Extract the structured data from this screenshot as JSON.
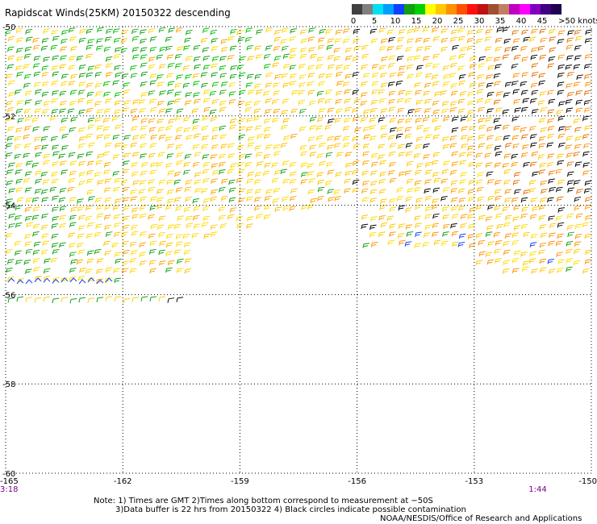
{
  "title": "Rapidscat Winds(25KM) 20150322 descending",
  "legend": {
    "labels": [
      "0",
      "5",
      "10",
      "15",
      "20",
      "25",
      "30",
      "35",
      "40",
      "45",
      ">50 knots"
    ],
    "colors": [
      "#404040",
      "#808080",
      "#00e0f0",
      "#00a0ff",
      "#1040ff",
      "#10a010",
      "#00d000",
      "#ffff00",
      "#ffc800",
      "#ff9000",
      "#ff5000",
      "#ff1010",
      "#c01010",
      "#a05030",
      "#c08060",
      "#c000c0",
      "#ff00ff",
      "#8000c0",
      "#400080",
      "#200050"
    ]
  },
  "map": {
    "lon_min": -165,
    "lon_max": -150,
    "lat_min": -60,
    "lat_max": -50,
    "lon_ticks": [
      "-165",
      "-162",
      "-159",
      "-156",
      "-153",
      "-150"
    ],
    "lat_ticks": [
      "-50",
      "-52",
      "-54",
      "-56",
      "-58",
      "-60"
    ],
    "lon_values": [
      -165,
      -162,
      -159,
      -156,
      -153,
      -150
    ],
    "lat_values": [
      -50,
      -52,
      -54,
      -56,
      -58,
      -60
    ],
    "grid_lon": [
      -162,
      -159,
      -156,
      -153
    ],
    "grid_lat": [
      -52,
      -54,
      -56,
      -58
    ],
    "times": [
      {
        "label": "3:18",
        "lon": -165
      },
      {
        "label": "1:44",
        "lon": -151.4
      }
    ]
  },
  "notes": [
    "Note: 1) Times are GMT 2)Times along bottom correspond to measurement at −50S",
    "3)Data buffer is 22 hrs from 20150322 4) Black circles indicate possible contamination",
    "NOAA/NESDIS/Office of Research and Applications"
  ]
}
